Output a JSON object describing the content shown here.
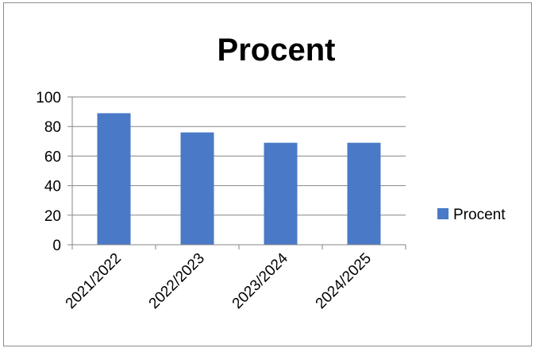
{
  "chart_data": {
    "type": "bar",
    "title": "Procent",
    "xlabel": "",
    "ylabel": "",
    "categories": [
      "2021/2022",
      "2022/2023",
      "2023/2024",
      "2024/2025"
    ],
    "series": [
      {
        "name": "Procent",
        "values": [
          89,
          76,
          69,
          69
        ]
      }
    ],
    "ylim": [
      0,
      100
    ],
    "yticks": [
      0,
      20,
      40,
      60,
      80,
      100
    ],
    "grid": true,
    "legend_position": "right",
    "colors": {
      "bar": "#4a7ac7",
      "grid": "#868686",
      "axis": "#868686"
    }
  }
}
